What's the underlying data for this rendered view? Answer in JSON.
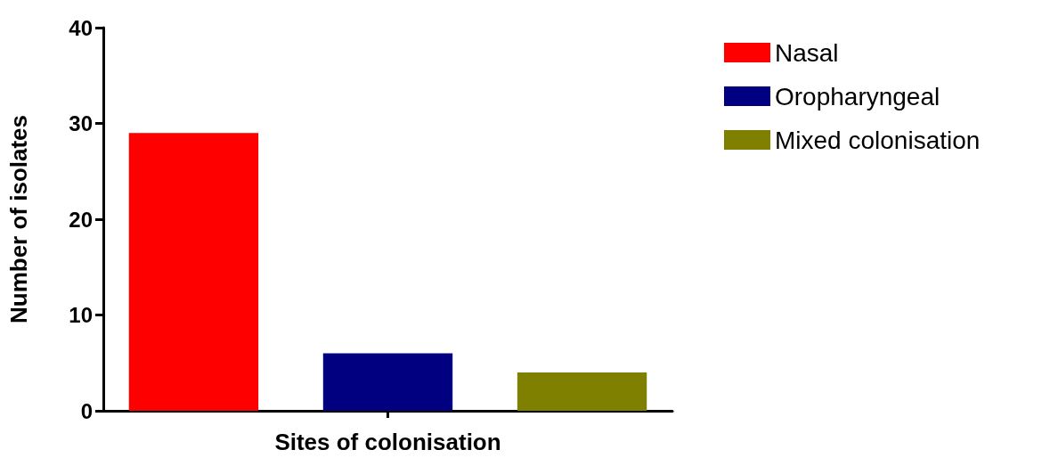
{
  "chart_data": {
    "type": "bar",
    "xlabel": "Sites of colonisation",
    "ylabel": "Number of isolates",
    "categories": [
      null
    ],
    "series": [
      {
        "name": "Nasal",
        "color": "#ff0000",
        "values": [
          29
        ]
      },
      {
        "name": "Oropharyngeal",
        "color": "#000080",
        "values": [
          6
        ]
      },
      {
        "name": "Mixed colonisation",
        "color": "#808000",
        "values": [
          4
        ]
      }
    ],
    "ylim": [
      0,
      40
    ],
    "yticks": [
      0,
      10,
      20,
      30,
      40
    ],
    "legend": "right"
  }
}
